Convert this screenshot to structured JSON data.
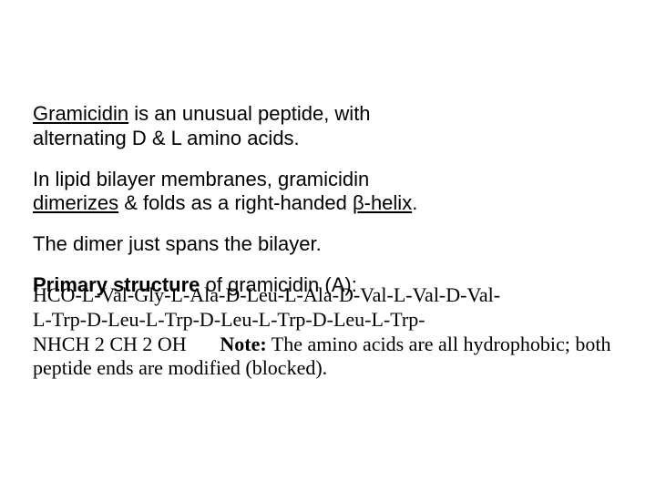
{
  "typography": {
    "body_font_family": "Arial, Helvetica, sans-serif",
    "sequence_font_family": "Georgia, 'Times New Roman', serif",
    "font_size_pt": 16,
    "text_color": "#000000",
    "background_color": "#ffffff"
  },
  "p1": {
    "t1": "Gramicidin",
    "t2": " is an unusual peptide, with alternating D & L amino acids."
  },
  "p2": {
    "t1": "In lipid bilayer membranes, gramicidin ",
    "t2": "dimerizes",
    "t3": " & folds as a right-handed ",
    "t4": "β-helix",
    "t5": "."
  },
  "p3": {
    "t1": "The dimer just spans the bilayer."
  },
  "p4": {
    "t1": "Primary structure",
    "t2": " of gramicidin (A):"
  },
  "seq": {
    "line1": "HCO-L-Val-Gly-L-Ala-D-Leu-L-Ala-D-Val-L-Val-D-Val-",
    "line2a": "L-Trp-D-Leu-L-Trp-D-Leu-L-Trp-D-Leu-L-Trp-",
    "line3a": "NHCH 2 CH 2 OH",
    "note_label": "Note:",
    "note_rest": " The amino acids are all hydrophobic; both peptide ends are modified (blocked)."
  }
}
